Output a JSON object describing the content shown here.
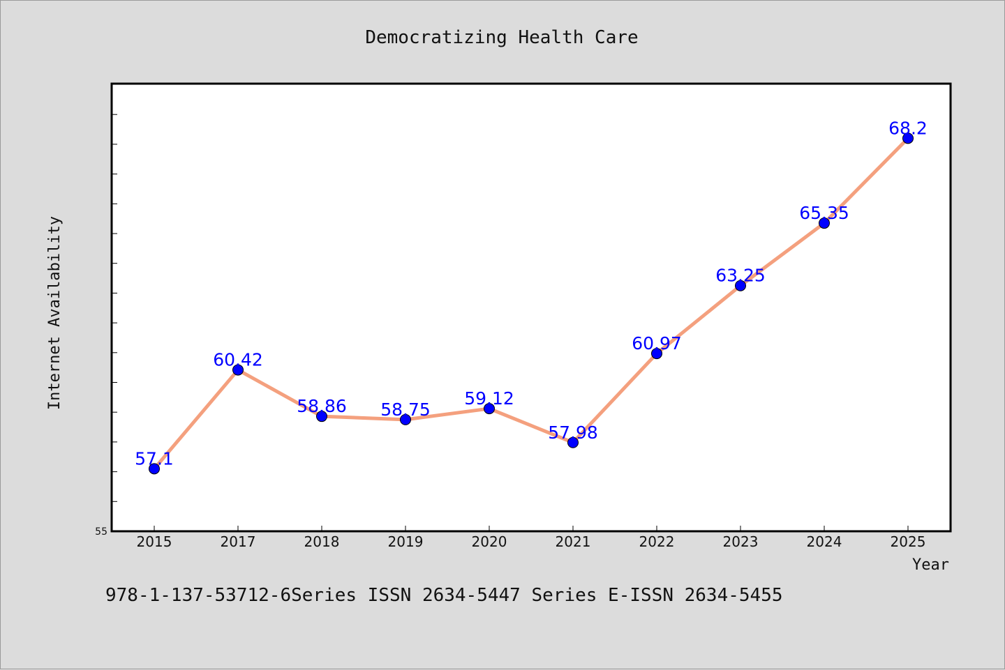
{
  "chart_data": {
    "type": "line",
    "title": "Democratizing Health Care",
    "xlabel": "Year",
    "ylabel": "Internet Availability",
    "categories": [
      "2015",
      "2017",
      "2018",
      "2019",
      "2020",
      "2021",
      "2022",
      "2023",
      "2024",
      "2025"
    ],
    "series": [
      {
        "values": [
          57.1,
          60.42,
          58.86,
          58.75,
          59.12,
          57.98,
          60.97,
          63.25,
          65.35,
          68.2
        ],
        "data_labels": [
          "57.1",
          "60.42",
          "58.86",
          "58.75",
          "59.12",
          "57.98",
          "60.97",
          "63.25",
          "65.35",
          "68.2"
        ]
      }
    ],
    "ylim": [
      55,
      70
    ],
    "y_tick_labels": [
      "55"
    ],
    "grid": false,
    "legend": "none",
    "colors": {
      "line": "#f4a07e",
      "marker": "#0000ff",
      "data_label": "#0000ff",
      "background": "#dcdcdc",
      "plot_background": "#ffffff"
    }
  },
  "footer_text": "978-1-137-53712-6Series ISSN 2634-5447 Series E-ISSN 2634-5455"
}
